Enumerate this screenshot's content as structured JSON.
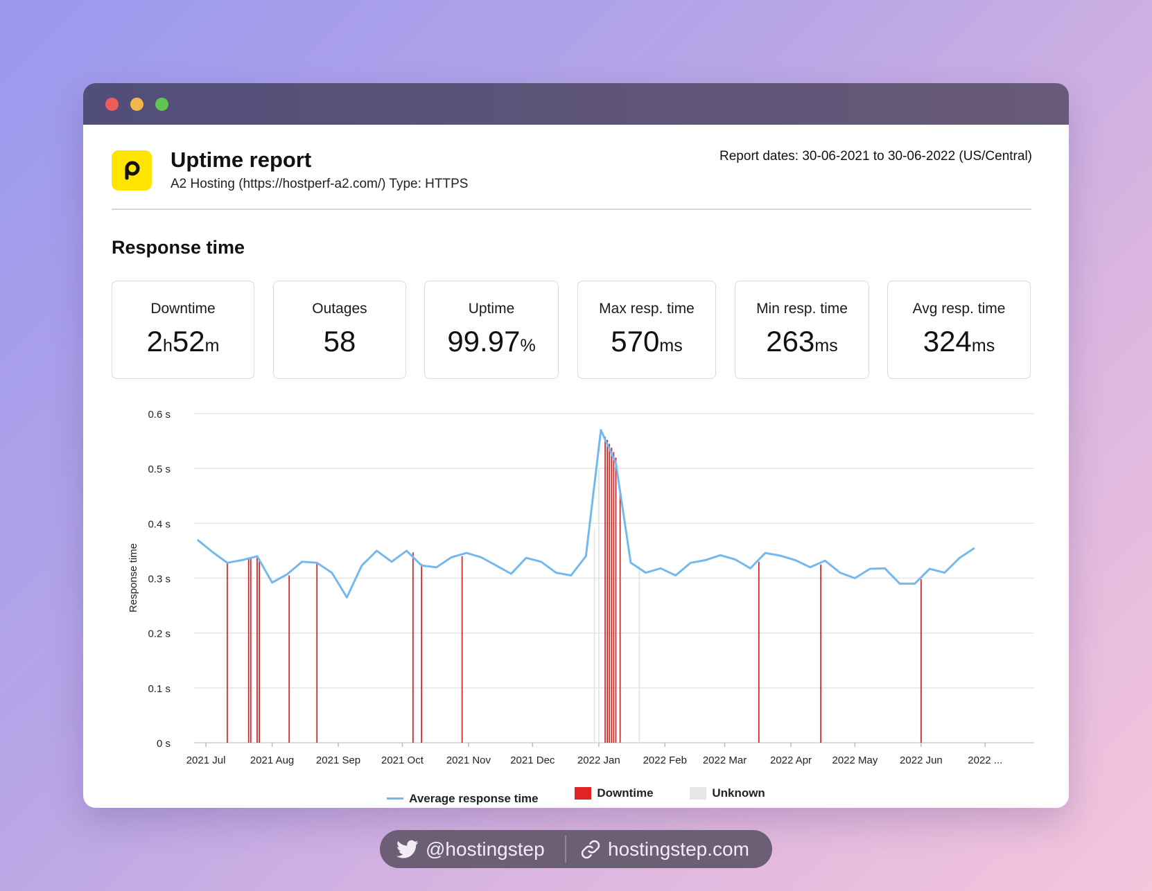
{
  "header": {
    "title": "Uptime report",
    "subtitle": "A2 Hosting (https://hostperf-a2.com/) Type: HTTPS",
    "dates": "Report dates: 30-06-2021 to 30-06-2022 (US/Central)",
    "logo_letter": "p"
  },
  "section_title": "Response time",
  "stats": [
    {
      "label": "Downtime",
      "parts": [
        {
          "t": "2",
          "u": false
        },
        {
          "t": "h",
          "u": true
        },
        {
          "t": "52",
          "u": false
        },
        {
          "t": "m",
          "u": true
        }
      ]
    },
    {
      "label": "Outages",
      "parts": [
        {
          "t": "58",
          "u": false
        }
      ]
    },
    {
      "label": "Uptime",
      "parts": [
        {
          "t": "99.97",
          "u": false
        },
        {
          "t": "%",
          "u": true
        }
      ]
    },
    {
      "label": "Max resp. time",
      "parts": [
        {
          "t": "570",
          "u": false
        },
        {
          "t": "ms",
          "u": true
        }
      ]
    },
    {
      "label": "Min resp. time",
      "parts": [
        {
          "t": "263",
          "u": false
        },
        {
          "t": "ms",
          "u": true
        }
      ]
    },
    {
      "label": "Avg resp. time",
      "parts": [
        {
          "t": "324",
          "u": false
        },
        {
          "t": "ms",
          "u": true
        }
      ]
    }
  ],
  "chart_data": {
    "type": "line",
    "ylabel": "Response time",
    "ylim": [
      0,
      0.6
    ],
    "y_ticks": [
      {
        "value": 0,
        "label": "0  s"
      },
      {
        "value": 0.1,
        "label": "0.1  s"
      },
      {
        "value": 0.2,
        "label": "0.2  s"
      },
      {
        "value": 0.3,
        "label": "0.3  s"
      },
      {
        "value": 0.4,
        "label": "0.4  s"
      },
      {
        "value": 0.5,
        "label": "0.5  s"
      },
      {
        "value": 0.6,
        "label": "0.6  s"
      }
    ],
    "xlim": [
      "2021-06-30",
      "2022-07-22"
    ],
    "x_ticks": [
      {
        "date": "2021-07-01",
        "label": "2021 Jul"
      },
      {
        "date": "2021-08-01",
        "label": "2021 Aug"
      },
      {
        "date": "2021-09-01",
        "label": "2021 Sep"
      },
      {
        "date": "2021-10-01",
        "label": "2021 Oct"
      },
      {
        "date": "2021-11-01",
        "label": "2021 Nov"
      },
      {
        "date": "2021-12-01",
        "label": "2021 Dec"
      },
      {
        "date": "2022-01-01",
        "label": "2022 Jan"
      },
      {
        "date": "2022-02-01",
        "label": "2022 Feb"
      },
      {
        "date": "2022-03-01",
        "label": "2022 Mar"
      },
      {
        "date": "2022-04-01",
        "label": "2022 Apr"
      },
      {
        "date": "2022-05-01",
        "label": "2022 May"
      },
      {
        "date": "2022-06-01",
        "label": "2022 Jun"
      },
      {
        "date": "2022-07-01",
        "label": "2022 ..."
      }
    ],
    "grid": true,
    "legend_position": "bottom-center",
    "series": [
      {
        "name": "Average response time",
        "color": "#74b9ee",
        "points": [
          [
            "2021-06-27",
            0.37
          ],
          [
            "2021-07-04",
            0.348
          ],
          [
            "2021-07-11",
            0.328
          ],
          [
            "2021-07-18",
            0.333
          ],
          [
            "2021-07-25",
            0.34
          ],
          [
            "2021-08-01",
            0.292
          ],
          [
            "2021-08-08",
            0.307
          ],
          [
            "2021-08-15",
            0.33
          ],
          [
            "2021-08-22",
            0.328
          ],
          [
            "2021-08-29",
            0.31
          ],
          [
            "2021-09-05",
            0.265
          ],
          [
            "2021-09-12",
            0.323
          ],
          [
            "2021-09-19",
            0.35
          ],
          [
            "2021-09-26",
            0.33
          ],
          [
            "2021-10-03",
            0.35
          ],
          [
            "2021-10-10",
            0.323
          ],
          [
            "2021-10-17",
            0.32
          ],
          [
            "2021-10-24",
            0.338
          ],
          [
            "2021-10-31",
            0.346
          ],
          [
            "2021-11-07",
            0.338
          ],
          [
            "2021-11-14",
            0.323
          ],
          [
            "2021-11-21",
            0.308
          ],
          [
            "2021-11-28",
            0.337
          ],
          [
            "2021-12-05",
            0.33
          ],
          [
            "2021-12-12",
            0.31
          ],
          [
            "2021-12-19",
            0.305
          ],
          [
            "2021-12-26",
            0.34
          ],
          [
            "2022-01-02",
            0.57
          ],
          [
            "2022-01-09",
            0.51
          ],
          [
            "2022-01-16",
            0.328
          ],
          [
            "2022-01-23",
            0.31
          ],
          [
            "2022-01-30",
            0.318
          ],
          [
            "2022-02-06",
            0.305
          ],
          [
            "2022-02-13",
            0.328
          ],
          [
            "2022-02-20",
            0.333
          ],
          [
            "2022-02-27",
            0.342
          ],
          [
            "2022-03-06",
            0.334
          ],
          [
            "2022-03-13",
            0.318
          ],
          [
            "2022-03-20",
            0.346
          ],
          [
            "2022-03-27",
            0.341
          ],
          [
            "2022-04-03",
            0.333
          ],
          [
            "2022-04-10",
            0.32
          ],
          [
            "2022-04-17",
            0.332
          ],
          [
            "2022-04-24",
            0.31
          ],
          [
            "2022-05-01",
            0.3
          ],
          [
            "2022-05-08",
            0.317
          ],
          [
            "2022-05-15",
            0.318
          ],
          [
            "2022-05-22",
            0.29
          ],
          [
            "2022-05-29",
            0.29
          ],
          [
            "2022-06-05",
            0.317
          ],
          [
            "2022-06-12",
            0.31
          ],
          [
            "2022-06-19",
            0.337
          ],
          [
            "2022-06-26",
            0.355
          ]
        ]
      },
      {
        "name": "Downtime",
        "color": "#e02424",
        "events": [
          [
            "2021-07-11",
            0.328
          ],
          [
            "2021-07-21",
            0.335
          ],
          [
            "2021-07-22",
            0.336
          ],
          [
            "2021-07-25",
            0.338
          ],
          [
            "2021-07-26",
            0.336
          ],
          [
            "2021-08-09",
            0.305
          ],
          [
            "2021-08-22",
            0.328
          ],
          [
            "2021-10-06",
            0.347
          ],
          [
            "2021-10-10",
            0.326
          ],
          [
            "2021-10-29",
            0.34
          ],
          [
            "2022-01-04",
            0.558
          ],
          [
            "2022-01-05",
            0.552
          ],
          [
            "2022-01-06",
            0.545
          ],
          [
            "2022-01-07",
            0.538
          ],
          [
            "2022-01-08",
            0.53
          ],
          [
            "2022-01-09",
            0.52
          ],
          [
            "2022-01-11",
            0.46
          ],
          [
            "2022-03-17",
            0.33
          ],
          [
            "2022-04-15",
            0.325
          ],
          [
            "2022-06-01",
            0.298
          ]
        ]
      },
      {
        "name": "Unknown",
        "color": "#e6e6e6",
        "events": [
          [
            "2021-12-30",
            0.39
          ],
          [
            "2022-01-01",
            0.5
          ],
          [
            "2022-01-20",
            0.322
          ]
        ]
      }
    ]
  },
  "social": {
    "twitter_handle": "@hostingstep",
    "website": "hostingstep.com"
  }
}
